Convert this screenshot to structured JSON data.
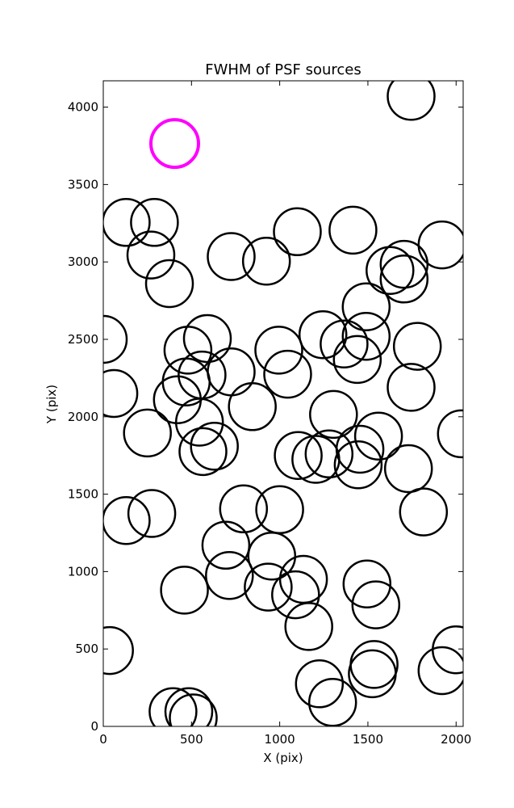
{
  "chart_data": {
    "type": "scatter",
    "title": "FWHM of PSF sources",
    "xlabel": "X (pix)",
    "ylabel": "Y (pix)",
    "xlim": [
      0,
      2040
    ],
    "ylim": [
      0,
      4170
    ],
    "xticks": [
      0,
      500,
      1000,
      1500,
      2000
    ],
    "yticks": [
      0,
      500,
      1000,
      1500,
      2000,
      2500,
      3000,
      3500,
      4000
    ],
    "grid": false,
    "marker": "open-circle",
    "series": [
      {
        "color": "#000000",
        "points": [
          [
            1745,
            4070
          ],
          [
            130,
            3255
          ],
          [
            290,
            3255
          ],
          [
            1100,
            3195
          ],
          [
            1415,
            3205
          ],
          [
            1920,
            3110
          ],
          [
            270,
            3045
          ],
          [
            725,
            3035
          ],
          [
            925,
            3005
          ],
          [
            1625,
            2945
          ],
          [
            1705,
            2985
          ],
          [
            1705,
            2890
          ],
          [
            375,
            2860
          ],
          [
            1490,
            2710
          ],
          [
            0,
            2500
          ],
          [
            590,
            2505
          ],
          [
            480,
            2430
          ],
          [
            995,
            2430
          ],
          [
            1245,
            2530
          ],
          [
            1365,
            2470
          ],
          [
            1490,
            2520
          ],
          [
            1780,
            2455
          ],
          [
            1440,
            2370
          ],
          [
            560,
            2270
          ],
          [
            725,
            2290
          ],
          [
            1045,
            2275
          ],
          [
            470,
            2225
          ],
          [
            60,
            2150
          ],
          [
            420,
            2110
          ],
          [
            845,
            2065
          ],
          [
            1745,
            2190
          ],
          [
            1305,
            2015
          ],
          [
            545,
            1965
          ],
          [
            250,
            1895
          ],
          [
            630,
            1810
          ],
          [
            565,
            1775
          ],
          [
            1105,
            1750
          ],
          [
            1205,
            1725
          ],
          [
            1280,
            1760
          ],
          [
            1455,
            1790
          ],
          [
            1560,
            1875
          ],
          [
            1445,
            1690
          ],
          [
            1730,
            1665
          ],
          [
            2030,
            1890
          ],
          [
            130,
            1330
          ],
          [
            275,
            1375
          ],
          [
            795,
            1405
          ],
          [
            1000,
            1400
          ],
          [
            1815,
            1385
          ],
          [
            695,
            1170
          ],
          [
            715,
            975
          ],
          [
            955,
            1100
          ],
          [
            935,
            900
          ],
          [
            1135,
            950
          ],
          [
            1090,
            850
          ],
          [
            1495,
            920
          ],
          [
            1545,
            785
          ],
          [
            460,
            880
          ],
          [
            35,
            490
          ],
          [
            1165,
            645
          ],
          [
            1535,
            400
          ],
          [
            1525,
            340
          ],
          [
            2000,
            495
          ],
          [
            1920,
            360
          ],
          [
            1225,
            275
          ],
          [
            1300,
            155
          ],
          [
            395,
            95
          ],
          [
            485,
            95
          ],
          [
            510,
            55
          ]
        ]
      },
      {
        "color": "#ff00ff",
        "points": [
          [
            405,
            3765
          ]
        ]
      }
    ]
  }
}
